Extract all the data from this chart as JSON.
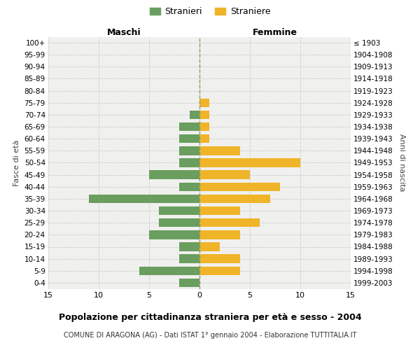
{
  "age_groups": [
    "100+",
    "95-99",
    "90-94",
    "85-89",
    "80-84",
    "75-79",
    "70-74",
    "65-69",
    "60-64",
    "55-59",
    "50-54",
    "45-49",
    "40-44",
    "35-39",
    "30-34",
    "25-29",
    "20-24",
    "15-19",
    "10-14",
    "5-9",
    "0-4"
  ],
  "birth_years": [
    "≤ 1903",
    "1904-1908",
    "1909-1913",
    "1914-1918",
    "1919-1923",
    "1924-1928",
    "1929-1933",
    "1934-1938",
    "1939-1943",
    "1944-1948",
    "1949-1953",
    "1954-1958",
    "1959-1963",
    "1964-1968",
    "1969-1973",
    "1974-1978",
    "1979-1983",
    "1984-1988",
    "1989-1993",
    "1994-1998",
    "1999-2003"
  ],
  "maschi": [
    0,
    0,
    0,
    0,
    0,
    0,
    1,
    2,
    2,
    2,
    2,
    5,
    2,
    11,
    4,
    4,
    5,
    2,
    2,
    6,
    2
  ],
  "femmine": [
    0,
    0,
    0,
    0,
    0,
    1,
    1,
    1,
    1,
    4,
    10,
    5,
    8,
    7,
    4,
    6,
    4,
    2,
    4,
    4,
    0
  ],
  "male_color": "#6a9e5e",
  "female_color": "#f0b429",
  "background_color": "#f0f0ee",
  "grid_color": "#cccccc",
  "center_line_color": "#999966",
  "title": "Popolazione per cittadinanza straniera per età e sesso - 2004",
  "subtitle": "COMUNE DI ARAGONA (AG) - Dati ISTAT 1° gennaio 2004 - Elaborazione TUTTITALIA.IT",
  "xlabel_left": "Maschi",
  "xlabel_right": "Femmine",
  "ylabel_left": "Fasce di età",
  "ylabel_right": "Anni di nascita",
  "legend_stranieri": "Stranieri",
  "legend_straniere": "Straniere",
  "xlim": 15
}
